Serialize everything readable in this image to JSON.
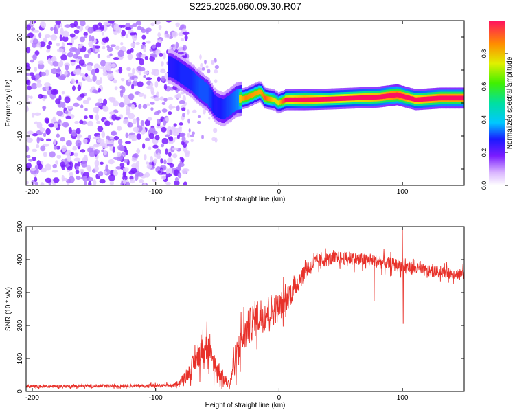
{
  "figure_title": "S225.2026.060.09.30.R07",
  "chart_data": [
    {
      "type": "heatmap",
      "xlabel": "Height of straight line (km)",
      "ylabel": "Frequency (Hz)",
      "xlim": [
        -205,
        150
      ],
      "ylim": [
        -25,
        25
      ],
      "xticks": [
        -200,
        -100,
        0,
        100
      ],
      "yticks": [
        -20,
        -10,
        0,
        10,
        20
      ],
      "colorbar": {
        "label": "Normalized spectral amplitude",
        "range": [
          0,
          1
        ],
        "ticks": [
          0.0,
          0.2,
          0.4,
          0.6,
          0.8
        ]
      },
      "noise_region_x": [
        -205,
        -80
      ],
      "ridge": [
        {
          "x": -88,
          "f": 11,
          "a": 0.3
        },
        {
          "x": -80,
          "f": 9,
          "a": 0.35
        },
        {
          "x": -72,
          "f": 7,
          "a": 0.35
        },
        {
          "x": -65,
          "f": 4.5,
          "a": 0.4
        },
        {
          "x": -58,
          "f": 2.5,
          "a": 0.4
        },
        {
          "x": -52,
          "f": -1,
          "a": 0.3
        },
        {
          "x": -46,
          "f": -2,
          "a": 0.35
        },
        {
          "x": -40,
          "f": -0.5,
          "a": 0.4
        },
        {
          "x": -35,
          "f": 1,
          "a": 0.45
        },
        {
          "x": -28,
          "f": 1.5,
          "a": 0.6
        },
        {
          "x": -16,
          "f": 3.5,
          "a": 0.55
        },
        {
          "x": -12,
          "f": 1.5,
          "a": 0.65
        },
        {
          "x": -5,
          "f": 1,
          "a": 0.5
        },
        {
          "x": -1,
          "f": 0,
          "a": 0.5
        },
        {
          "x": 5,
          "f": 1,
          "a": 0.75
        },
        {
          "x": 20,
          "f": 1,
          "a": 0.85
        },
        {
          "x": 40,
          "f": 1.2,
          "a": 0.75
        },
        {
          "x": 60,
          "f": 1.5,
          "a": 0.8
        },
        {
          "x": 80,
          "f": 1.8,
          "a": 0.85
        },
        {
          "x": 95,
          "f": 2.5,
          "a": 0.95
        },
        {
          "x": 110,
          "f": 1,
          "a": 0.8
        },
        {
          "x": 130,
          "f": 1.5,
          "a": 0.9
        },
        {
          "x": 150,
          "f": 1.5,
          "a": 0.9
        }
      ]
    },
    {
      "type": "line",
      "xlabel": "Height of straight line (km)",
      "ylabel": "SNR (10 * v/v)",
      "xlim": [
        -205,
        150
      ],
      "ylim": [
        0,
        500
      ],
      "xticks": [
        -200,
        -100,
        0,
        100
      ],
      "yticks": [
        0,
        100,
        200,
        300,
        400,
        500
      ],
      "series_color": "#e8312a",
      "envelope": [
        {
          "x": -205,
          "y": 15,
          "noise": 6
        },
        {
          "x": -85,
          "y": 18,
          "noise": 6
        },
        {
          "x": -75,
          "y": 45,
          "noise": 20
        },
        {
          "x": -65,
          "y": 110,
          "noise": 55
        },
        {
          "x": -60,
          "y": 160,
          "noise": 70
        },
        {
          "x": -55,
          "y": 100,
          "noise": 50
        },
        {
          "x": -50,
          "y": 70,
          "noise": 40
        },
        {
          "x": -45,
          "y": 40,
          "noise": 25
        },
        {
          "x": -40,
          "y": 20,
          "noise": 15
        },
        {
          "x": -37,
          "y": 80,
          "noise": 50
        },
        {
          "x": -30,
          "y": 160,
          "noise": 70
        },
        {
          "x": -20,
          "y": 220,
          "noise": 70
        },
        {
          "x": -10,
          "y": 240,
          "noise": 70
        },
        {
          "x": 0,
          "y": 255,
          "noise": 55
        },
        {
          "x": 10,
          "y": 300,
          "noise": 45
        },
        {
          "x": 20,
          "y": 360,
          "noise": 35
        },
        {
          "x": 30,
          "y": 395,
          "noise": 28
        },
        {
          "x": 50,
          "y": 405,
          "noise": 25
        },
        {
          "x": 80,
          "y": 395,
          "noise": 25
        },
        {
          "x": 100,
          "y": 380,
          "noise": 25
        },
        {
          "x": 120,
          "y": 365,
          "noise": 22
        },
        {
          "x": 150,
          "y": 355,
          "noise": 20
        }
      ],
      "spikes": [
        {
          "x": 100,
          "y": 510
        },
        {
          "x": 100.5,
          "y": 205
        },
        {
          "x": 77,
          "y": 275
        }
      ]
    }
  ]
}
